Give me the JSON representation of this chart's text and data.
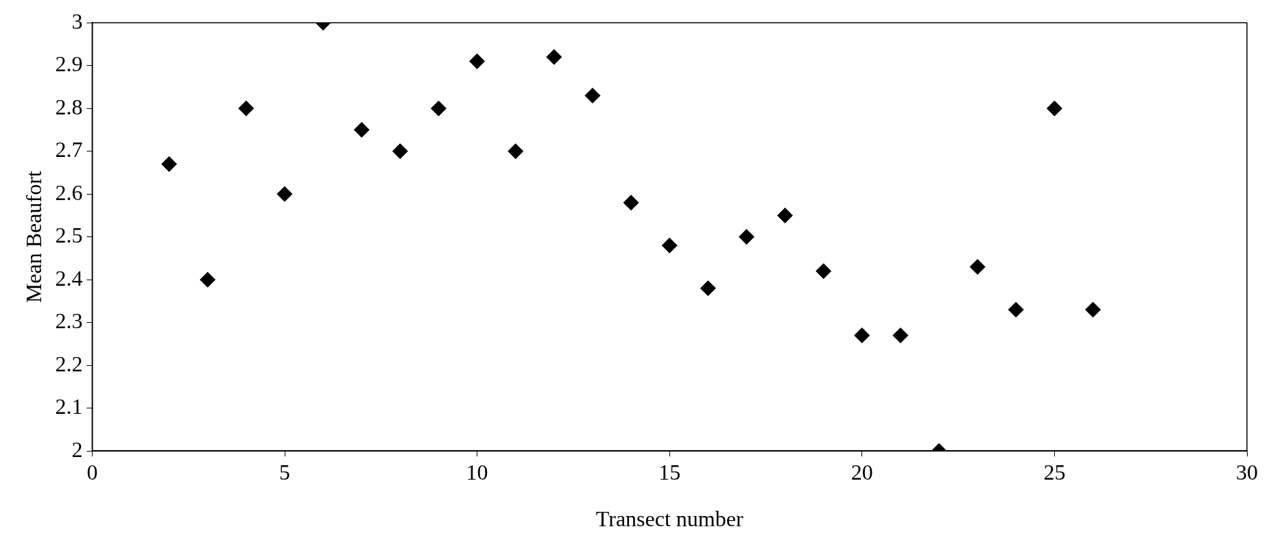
{
  "chart_data": {
    "type": "scatter",
    "xlabel": "Transect number",
    "ylabel": "Mean Beaufort",
    "marker": "diamond",
    "grid": false,
    "legend": false,
    "x": [
      2,
      3,
      4,
      5,
      6,
      7,
      8,
      9,
      10,
      11,
      12,
      13,
      14,
      15,
      16,
      17,
      18,
      19,
      20,
      21,
      22,
      23,
      24,
      25,
      26
    ],
    "series": [
      {
        "color": "#000000",
        "values": [
          2.67,
          2.4,
          2.8,
          2.6,
          3.0,
          2.75,
          2.7,
          2.8,
          2.91,
          2.7,
          2.92,
          2.83,
          2.58,
          2.48,
          2.38,
          2.5,
          2.55,
          2.42,
          2.27,
          2.27,
          2.0,
          2.43,
          2.33,
          2.8,
          2.33
        ]
      }
    ],
    "xlim": [
      0,
      30
    ],
    "xticks": [
      0,
      5,
      10,
      15,
      20,
      25,
      30
    ],
    "ylim": [
      2,
      3
    ],
    "yticks": [
      2,
      2.1,
      2.2,
      2.3,
      2.4,
      2.5,
      2.6,
      2.7,
      2.8,
      2.9,
      3
    ]
  }
}
